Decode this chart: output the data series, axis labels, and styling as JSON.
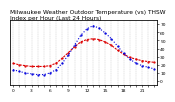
{
  "title": "Milwaukee Weather Outdoor Temperature (vs) THSW Index per Hour (Last 24 Hours)",
  "hours": [
    0,
    1,
    2,
    3,
    4,
    5,
    6,
    7,
    8,
    9,
    10,
    11,
    12,
    13,
    14,
    15,
    16,
    17,
    18,
    19,
    20,
    21,
    22,
    23
  ],
  "temp": [
    22,
    20,
    19,
    18,
    18,
    18,
    19,
    22,
    28,
    35,
    42,
    48,
    51,
    52,
    51,
    48,
    44,
    38,
    33,
    29,
    27,
    25,
    24,
    23
  ],
  "thsw": [
    14,
    12,
    10,
    9,
    8,
    8,
    10,
    14,
    22,
    32,
    44,
    56,
    64,
    68,
    65,
    59,
    52,
    43,
    34,
    27,
    22,
    19,
    17,
    15
  ],
  "temp_color": "#dd0000",
  "thsw_color": "#0000dd",
  "bg_color": "#ffffff",
  "grid_color": "#888888",
  "ylim": [
    -5,
    75
  ],
  "yticks": [
    0,
    10,
    20,
    30,
    40,
    50,
    60,
    70
  ],
  "ytick_labels": [
    "0",
    "10",
    "20",
    "30",
    "40",
    "50",
    "60",
    "70"
  ],
  "xlim": [
    -0.5,
    23.5
  ],
  "title_fontsize": 4.2,
  "tick_fontsize": 3.2,
  "line_width": 0.8,
  "marker_size": 1.2
}
